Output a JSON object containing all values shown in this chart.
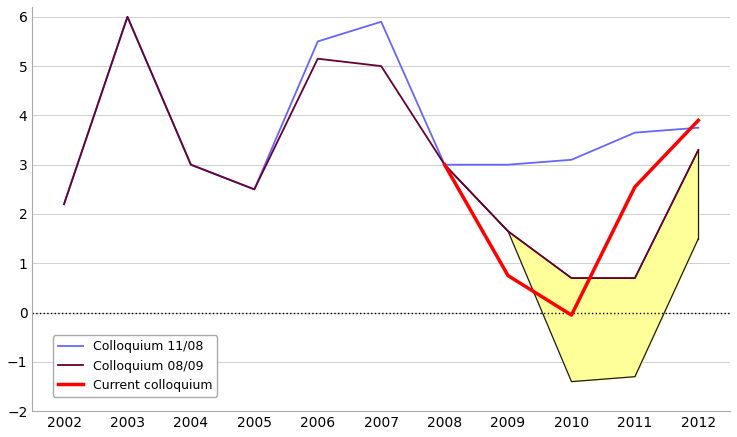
{
  "years_blue": [
    2002,
    2003,
    2004,
    2005,
    2006,
    2007,
    2008,
    2009,
    2010,
    2011,
    2012
  ],
  "values_blue": [
    2.2,
    6.0,
    3.0,
    2.5,
    5.5,
    5.9,
    3.0,
    3.0,
    3.1,
    3.65,
    3.75
  ],
  "years_darkred": [
    2002,
    2003,
    2004,
    2005,
    2006,
    2007,
    2008,
    2009,
    2010,
    2011,
    2012
  ],
  "values_darkred": [
    2.2,
    6.0,
    3.0,
    2.5,
    5.15,
    5.0,
    3.0,
    1.65,
    0.7,
    0.7,
    3.3
  ],
  "years_red": [
    2008,
    2009,
    2010,
    2011,
    2012
  ],
  "values_red": [
    3.0,
    0.75,
    -0.05,
    2.55,
    3.9
  ],
  "fill_outline_upper_x": [
    2008,
    2009,
    2010,
    2011,
    2012
  ],
  "fill_outline_upper_y": [
    3.0,
    1.65,
    0.7,
    0.7,
    3.3
  ],
  "fill_outline_lower_x": [
    2008,
    2009,
    2010,
    2011,
    2012
  ],
  "fill_outline_lower_y": [
    3.0,
    1.65,
    -1.4,
    -1.3,
    1.5
  ],
  "color_blue": "#6666ff",
  "color_darkred": "#660033",
  "color_red": "#ff0000",
  "color_fill": "#ffff99",
  "color_fill_edge": "#1a1a1a",
  "xlim": [
    2001.5,
    2012.5
  ],
  "ylim": [
    -2.0,
    6.2
  ],
  "yticks": [
    -2,
    -1,
    0,
    1,
    2,
    3,
    4,
    5,
    6
  ],
  "xticks": [
    2002,
    2003,
    2004,
    2005,
    2006,
    2007,
    2008,
    2009,
    2010,
    2011,
    2012
  ],
  "legend_labels": [
    "Colloquium 11/08",
    "Colloquium 08/09",
    "Current colloquium"
  ],
  "legend_colors": [
    "#6666ff",
    "#660033",
    "#ff0000"
  ]
}
